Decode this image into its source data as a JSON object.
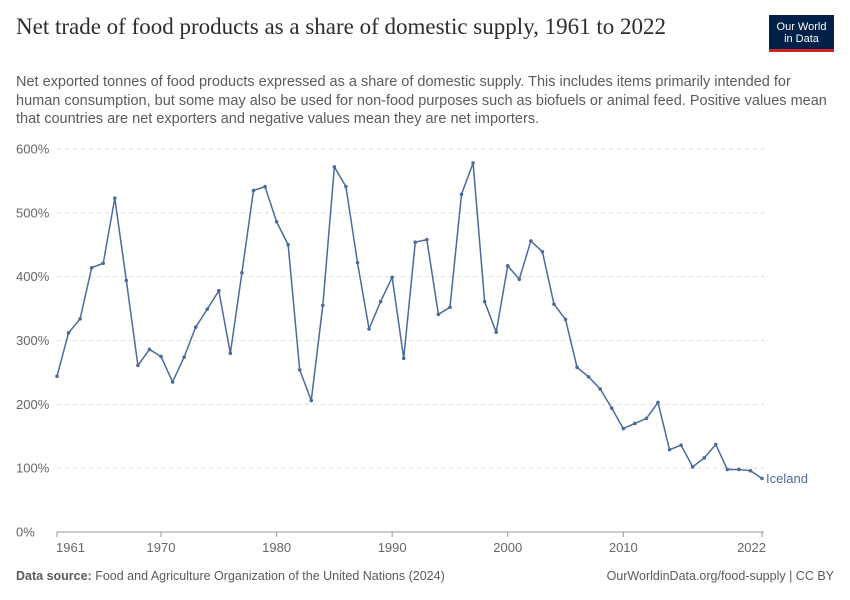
{
  "header": {
    "title": "Net trade of food products as a share of domestic supply, 1961 to 2022",
    "subtitle": "Net exported tonnes of food products expressed as a share of domestic supply. This includes items primarily intended for human consumption, but some may also be used for non-food purposes such as biofuels or animal feed. Positive values mean that countries are net exporters and negative values mean they are net importers.",
    "logo_line1": "Our World",
    "logo_line2": "in Data"
  },
  "footer": {
    "source_label": "Data source:",
    "source_text": "Food and Agriculture Organization of the United Nations (2024)",
    "link_text": "OurWorldinData.org/food-supply | CC BY"
  },
  "colors": {
    "series": "#4c6a9c",
    "grid": "#dddddd",
    "logo_bg": "#002147",
    "logo_accent": "#ce261e"
  },
  "chart_data": {
    "type": "line",
    "title": "Net trade of food products as a share of domestic supply, 1961 to 2022",
    "xlabel": "",
    "ylabel": "",
    "xlim": [
      1961,
      2022
    ],
    "ylim": [
      0,
      600
    ],
    "y_ticks": [
      0,
      100,
      200,
      300,
      400,
      500,
      600
    ],
    "y_tick_labels": [
      "0%",
      "100%",
      "200%",
      "300%",
      "400%",
      "500%",
      "600%"
    ],
    "x_ticks": [
      1961,
      1970,
      1980,
      1990,
      2000,
      2010,
      2022
    ],
    "x_tick_labels": [
      "1961",
      "1970",
      "1980",
      "1990",
      "2000",
      "2010",
      "2022"
    ],
    "grid": "horizontal dashed",
    "legend": "inline label at line end",
    "series": [
      {
        "name": "Iceland",
        "x": [
          1961,
          1962,
          1963,
          1964,
          1965,
          1966,
          1967,
          1968,
          1969,
          1970,
          1971,
          1972,
          1973,
          1974,
          1975,
          1976,
          1977,
          1978,
          1979,
          1980,
          1981,
          1982,
          1983,
          1984,
          1985,
          1986,
          1987,
          1988,
          1989,
          1990,
          1991,
          1992,
          1993,
          1994,
          1995,
          1996,
          1997,
          1998,
          1999,
          2000,
          2001,
          2002,
          2003,
          2004,
          2005,
          2006,
          2007,
          2008,
          2009,
          2010,
          2011,
          2012,
          2013,
          2014,
          2015,
          2016,
          2017,
          2018,
          2019,
          2020,
          2021,
          2022
        ],
        "y": [
          244,
          312,
          334,
          414,
          421,
          523,
          394,
          261,
          286,
          275,
          235,
          274,
          321,
          349,
          378,
          280,
          406,
          535,
          541,
          486,
          450,
          254,
          206,
          355,
          572,
          541,
          422,
          318,
          361,
          399,
          272,
          454,
          458,
          341,
          352,
          529,
          578,
          361,
          313,
          417,
          396,
          456,
          439,
          357,
          333,
          258,
          243,
          224,
          194,
          162,
          170,
          178,
          203,
          129,
          136,
          102,
          116,
          137,
          98,
          98,
          96,
          84
        ]
      }
    ]
  }
}
